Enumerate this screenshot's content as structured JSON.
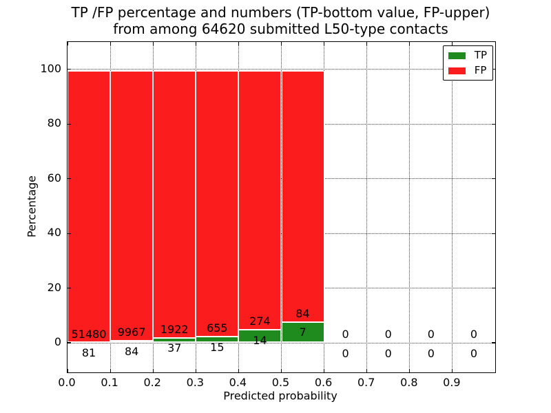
{
  "ui": {
    "title_line1": "TP /FP percentage and numbers (TP-bottom value, FP-upper)",
    "title_line2": "from among 64620 submitted L50-type contacts"
  },
  "chart_data": {
    "type": "bar",
    "stacked": true,
    "title": "TP /FP percentage and numbers (TP-bottom value, FP-upper)\nfrom among 64620 submitted L50-type contacts",
    "xlabel": "Predicted probability",
    "ylabel": "Percentage",
    "xlim": [
      0.0,
      1.0
    ],
    "ylim": [
      -10.8,
      110
    ],
    "grid": true,
    "grid_style": "dotted",
    "legend_position": "upper right",
    "bar_height_mode": "percent_of_bin_total_stacked_to_100",
    "total_submitted": 64620,
    "x_ticks": [
      0.0,
      0.1,
      0.2,
      0.3,
      0.4,
      0.5,
      0.6,
      0.7,
      0.8,
      0.9
    ],
    "x_tick_labels": [
      "0.0",
      "0.1",
      "0.2",
      "0.3",
      "0.4",
      "0.5",
      "0.6",
      "0.7",
      "0.8",
      "0.9"
    ],
    "x_gridlines": [
      0.1,
      0.2,
      0.3,
      0.4,
      0.5,
      0.6,
      0.7,
      0.8,
      0.9
    ],
    "y_ticks": [
      0,
      20,
      40,
      60,
      80,
      100
    ],
    "y_tick_labels": [
      "0",
      "20",
      "40",
      "60",
      "80",
      "100"
    ],
    "series": [
      {
        "name": "TP",
        "color": "#1f8b1f",
        "values": [
          81,
          84,
          37,
          15,
          14,
          7,
          0,
          0,
          0,
          0
        ]
      },
      {
        "name": "FP",
        "color": "#fb1d1d",
        "values": [
          51480,
          9967,
          1922,
          655,
          274,
          84,
          0,
          0,
          0,
          0
        ]
      }
    ],
    "bins": [
      {
        "range": [
          0.0,
          0.1
        ],
        "tp": 81,
        "fp": 51480
      },
      {
        "range": [
          0.1,
          0.2
        ],
        "tp": 84,
        "fp": 9967
      },
      {
        "range": [
          0.2,
          0.3
        ],
        "tp": 37,
        "fp": 1922
      },
      {
        "range": [
          0.3,
          0.4
        ],
        "tp": 15,
        "fp": 655
      },
      {
        "range": [
          0.4,
          0.5
        ],
        "tp": 14,
        "fp": 274
      },
      {
        "range": [
          0.5,
          0.6
        ],
        "tp": 7,
        "fp": 84
      },
      {
        "range": [
          0.6,
          0.7
        ],
        "tp": 0,
        "fp": 0
      },
      {
        "range": [
          0.7,
          0.8
        ],
        "tp": 0,
        "fp": 0
      },
      {
        "range": [
          0.8,
          0.9
        ],
        "tp": 0,
        "fp": 0
      },
      {
        "range": [
          0.9,
          1.0
        ],
        "tp": 0,
        "fp": 0
      }
    ],
    "colors": {
      "tp": "#1f8b1f",
      "fp": "#fb1d1d",
      "bar_edge": "#ffffff",
      "background": "#ffffff",
      "text": "#000000"
    }
  }
}
